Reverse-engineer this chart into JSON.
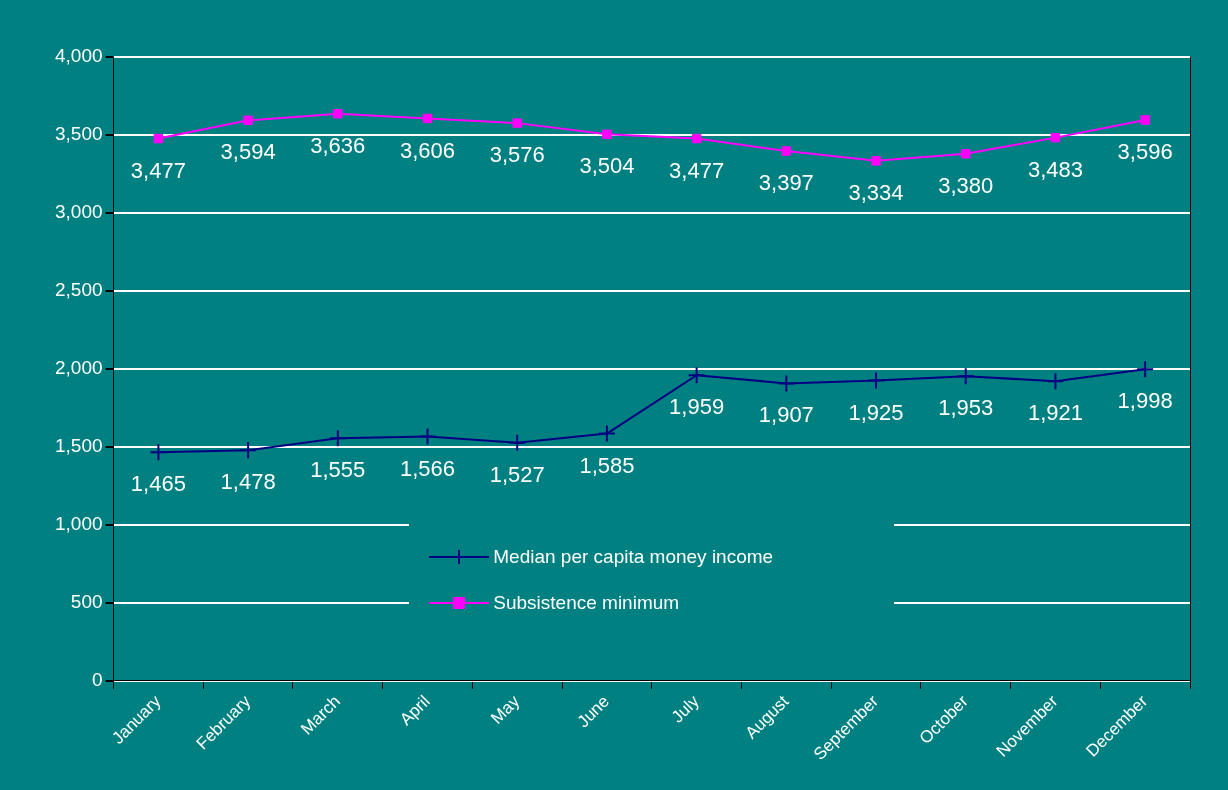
{
  "chart_data": {
    "type": "line",
    "categories": [
      "January",
      "February",
      "March",
      "April",
      "May",
      "June",
      "July",
      "August",
      "September",
      "October",
      "November",
      "December"
    ],
    "series": [
      {
        "name": "Median per capita money income",
        "color": "#000080",
        "marker": "cross",
        "values": [
          1465,
          1478,
          1555,
          1566,
          1527,
          1585,
          1959,
          1907,
          1925,
          1953,
          1921,
          1998
        ],
        "value_labels": [
          "1,465",
          "1,478",
          "1,555",
          "1,566",
          "1,527",
          "1,585",
          "1,959",
          "1,907",
          "1,925",
          "1,953",
          "1,921",
          "1,998"
        ]
      },
      {
        "name": "Subsistence minimum",
        "color": "#ff00ff",
        "marker": "square",
        "values": [
          3477,
          3594,
          3636,
          3606,
          3576,
          3504,
          3477,
          3397,
          3334,
          3380,
          3483,
          3596
        ],
        "value_labels": [
          "3,477",
          "3,594",
          "3,636",
          "3,606",
          "3,576",
          "3,504",
          "3,477",
          "3,397",
          "3,334",
          "3,380",
          "3,483",
          "3,596"
        ]
      }
    ],
    "ylim": [
      0,
      4000
    ],
    "yticks": [
      {
        "value": 0,
        "label": "0"
      },
      {
        "value": 500,
        "label": "500"
      },
      {
        "value": 1000,
        "label": "1,000"
      },
      {
        "value": 1500,
        "label": "1,500"
      },
      {
        "value": 2000,
        "label": "2,000"
      },
      {
        "value": 2500,
        "label": "2,500"
      },
      {
        "value": 3000,
        "label": "3,000"
      },
      {
        "value": 3500,
        "label": "3,500"
      },
      {
        "value": 4000,
        "label": "4,000"
      }
    ],
    "grid": "y",
    "legend": "bottom",
    "line_style": "solid"
  }
}
